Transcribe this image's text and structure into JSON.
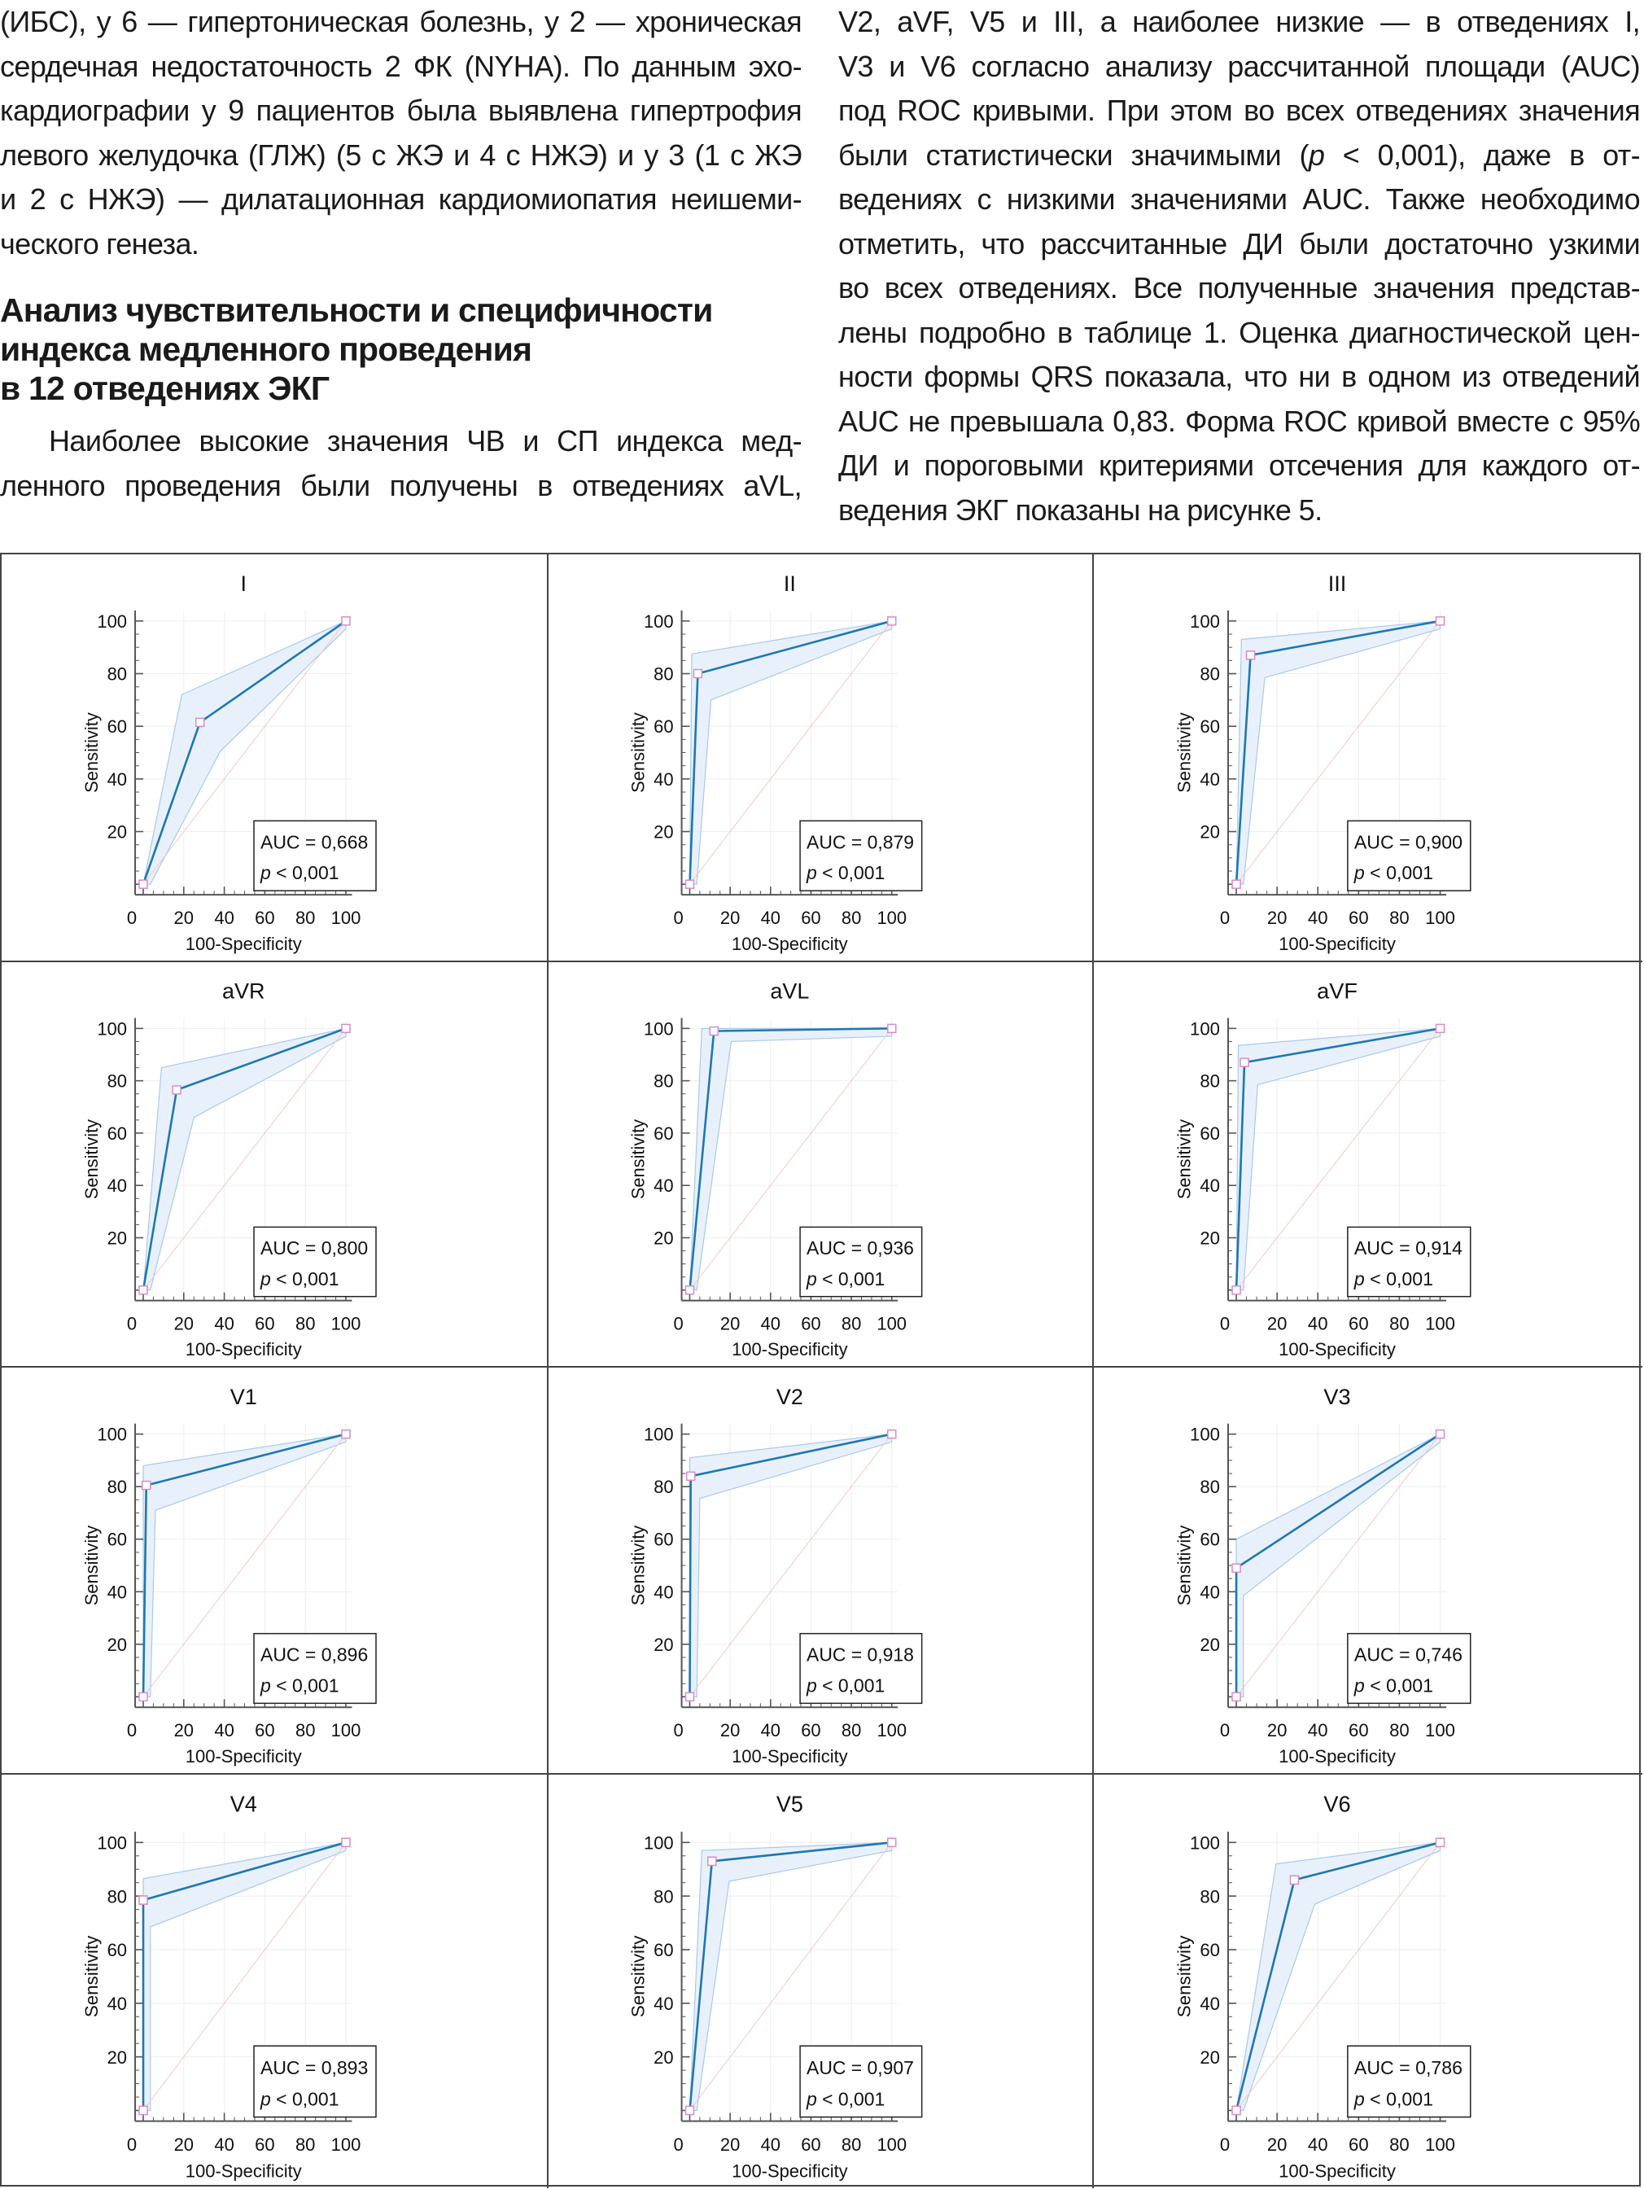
{
  "article": {
    "left_column": {
      "para1_lines": [
        "(ИБС), у 6 — гипертоническая болезнь, у 2 — хроническая",
        "сердечная недостаточность 2 ФК (NYHA). По данным эхо-",
        "кардиографии у 9 пациентов была выявлена гипертрофия",
        "левого желудочка (ГЛЖ) (5 с ЖЭ и 4 с НЖЭ) и у 3 (1 с ЖЭ",
        "и 2 с НЖЭ) — дилатационная кардиомиопатия неишеми-",
        "ческого генеза."
      ],
      "heading_lines": [
        "Анализ чувствительности и специфичности",
        "индекса медленного проведения",
        "в 12 отведениях ЭКГ"
      ],
      "para2_lines": [
        "Наиболее высокие значения ЧВ и СП индекса мед-",
        "ленного проведения были получены в отведениях aVL,"
      ]
    },
    "right_column": {
      "lines": [
        "V2, aVF, V5 и III, а наиболее низкие — в отведениях I,",
        "V3 и V6 согласно анализу рассчитанной площади (AUC)",
        "под ROC кривыми. При этом во всех отведениях значения",
        "были статистически значимыми (p < 0,001), даже в от-",
        "ведениях с низкими значениями AUC. Также необходимо",
        "отметить, что рассчитанные ДИ были достаточно узкими",
        "во всех отведениях. Все полученные значения представ-",
        "лены подробно в таблице 1. Оценка диагностической цен-",
        "ности формы QRS показала, что ни в одном из отведений",
        "AUC не превышала 0,83. Форма ROC кривой вместе с 95%",
        "ДИ и пороговыми критериями отсечения для каждого от-",
        "ведения ЭКГ показаны на рисунке 5."
      ]
    }
  },
  "colors": {
    "curve": "#1f77b4",
    "ci_fill": "#e8f1fb",
    "ci_edge": "#a9c9ea",
    "diagonal": "#f4c7c7",
    "marker": "#d98cc8",
    "grid": "#eeeeee",
    "axis": "#555555"
  },
  "chart_data": [
    {
      "type": "line",
      "title": "I",
      "xlabel": "100-Specificity",
      "ylabel": "Sensitivity",
      "xticks": [
        "0",
        "20",
        "40",
        "60",
        "80",
        "100"
      ],
      "yticks": [
        "20",
        "40",
        "60",
        "80",
        "100"
      ],
      "xlim": [
        -4,
        103
      ],
      "ylim": [
        -4,
        104
      ],
      "grid": true,
      "roc": [
        [
          0,
          0
        ],
        [
          28,
          61.5
        ],
        [
          100,
          100
        ]
      ],
      "ci_upper": [
        [
          0,
          0
        ],
        [
          19,
          72
        ],
        [
          100,
          100
        ]
      ],
      "ci_lower": [
        [
          3.5,
          0
        ],
        [
          38,
          50.5
        ],
        [
          100,
          97
        ]
      ],
      "diagonal": [
        [
          0,
          0
        ],
        [
          100,
          100
        ]
      ],
      "auc_label": "AUC = 0,668",
      "p_prefix": "p",
      "p_label": " < 0,001",
      "legend": "bottom-right"
    },
    {
      "type": "line",
      "title": "II",
      "xlabel": "100-Specificity",
      "ylabel": "Sensitivity",
      "xticks": [
        "0",
        "20",
        "40",
        "60",
        "80",
        "100"
      ],
      "yticks": [
        "20",
        "40",
        "60",
        "80",
        "100"
      ],
      "xlim": [
        -4,
        103
      ],
      "ylim": [
        -4,
        104
      ],
      "grid": true,
      "roc": [
        [
          0,
          0
        ],
        [
          4,
          80
        ],
        [
          100,
          100
        ]
      ],
      "ci_upper": [
        [
          0,
          0
        ],
        [
          1,
          87.5
        ],
        [
          100,
          100
        ]
      ],
      "ci_lower": [
        [
          3.5,
          0
        ],
        [
          10.5,
          70
        ],
        [
          100,
          97
        ]
      ],
      "diagonal": [
        [
          0,
          0
        ],
        [
          100,
          100
        ]
      ],
      "auc_label": "AUC = 0,879",
      "p_prefix": "p",
      "p_label": " < 0,001",
      "legend": "bottom-right"
    },
    {
      "type": "line",
      "title": "III",
      "xlabel": "100-Specificity",
      "ylabel": "Sensitivity",
      "xticks": [
        "0",
        "20",
        "40",
        "60",
        "80",
        "100"
      ],
      "yticks": [
        "20",
        "40",
        "60",
        "80",
        "100"
      ],
      "xlim": [
        -4,
        103
      ],
      "ylim": [
        -4,
        104
      ],
      "grid": true,
      "roc": [
        [
          0,
          0
        ],
        [
          7,
          87
        ],
        [
          100,
          100
        ]
      ],
      "ci_upper": [
        [
          0,
          0
        ],
        [
          2.5,
          93
        ],
        [
          100,
          100
        ]
      ],
      "ci_lower": [
        [
          3.5,
          0
        ],
        [
          14,
          78.5
        ],
        [
          100,
          97
        ]
      ],
      "diagonal": [
        [
          0,
          0
        ],
        [
          100,
          100
        ]
      ],
      "auc_label": "AUC = 0,900",
      "p_prefix": "p",
      "p_label": " < 0,001",
      "legend": "bottom-right"
    },
    {
      "type": "line",
      "title": "aVR",
      "xlabel": "100-Specificity",
      "ylabel": "Sensitivity",
      "xticks": [
        "0",
        "20",
        "40",
        "60",
        "80",
        "100"
      ],
      "yticks": [
        "20",
        "40",
        "60",
        "80",
        "100"
      ],
      "xlim": [
        -4,
        103
      ],
      "ylim": [
        -4,
        104
      ],
      "grid": true,
      "roc": [
        [
          0,
          0
        ],
        [
          16.5,
          76.5
        ],
        [
          100,
          100
        ]
      ],
      "ci_upper": [
        [
          0,
          0
        ],
        [
          9,
          85
        ],
        [
          100,
          100
        ]
      ],
      "ci_lower": [
        [
          3.5,
          0
        ],
        [
          25,
          66
        ],
        [
          100,
          97
        ]
      ],
      "diagonal": [
        [
          0,
          0
        ],
        [
          100,
          100
        ]
      ],
      "auc_label": "AUC = 0,800",
      "p_prefix": "p",
      "p_label": " < 0,001",
      "legend": "bottom-right"
    },
    {
      "type": "line",
      "title": "aVL",
      "xlabel": "100-Specificity",
      "ylabel": "Sensitivity",
      "xticks": [
        "0",
        "20",
        "40",
        "60",
        "80",
        "100"
      ],
      "yticks": [
        "20",
        "40",
        "60",
        "80",
        "100"
      ],
      "xlim": [
        -4,
        103
      ],
      "ylim": [
        -4,
        104
      ],
      "grid": true,
      "roc": [
        [
          0,
          0
        ],
        [
          12,
          99
        ],
        [
          100,
          100
        ]
      ],
      "ci_upper": [
        [
          0,
          0
        ],
        [
          6,
          100
        ],
        [
          100,
          100
        ]
      ],
      "ci_lower": [
        [
          3.5,
          0
        ],
        [
          20.5,
          95
        ],
        [
          100,
          97
        ]
      ],
      "diagonal": [
        [
          0,
          0
        ],
        [
          100,
          100
        ]
      ],
      "auc_label": "AUC = 0,936",
      "p_prefix": "p",
      "p_label": " < 0,001",
      "legend": "bottom-right"
    },
    {
      "type": "line",
      "title": "aVF",
      "xlabel": "100-Specificity",
      "ylabel": "Sensitivity",
      "xticks": [
        "0",
        "20",
        "40",
        "60",
        "80",
        "100"
      ],
      "yticks": [
        "20",
        "40",
        "60",
        "80",
        "100"
      ],
      "xlim": [
        -4,
        103
      ],
      "ylim": [
        -4,
        104
      ],
      "grid": true,
      "roc": [
        [
          0,
          0
        ],
        [
          4,
          87
        ],
        [
          100,
          100
        ]
      ],
      "ci_upper": [
        [
          0,
          0
        ],
        [
          1,
          93.5
        ],
        [
          100,
          100
        ]
      ],
      "ci_lower": [
        [
          3.5,
          0
        ],
        [
          10.5,
          78.5
        ],
        [
          100,
          97
        ]
      ],
      "diagonal": [
        [
          0,
          0
        ],
        [
          100,
          100
        ]
      ],
      "auc_label": "AUC = 0,914",
      "p_prefix": "p",
      "p_label": " < 0,001",
      "legend": "bottom-right"
    },
    {
      "type": "line",
      "title": "V1",
      "xlabel": "100-Specificity",
      "ylabel": "Sensitivity",
      "xticks": [
        "0",
        "20",
        "40",
        "60",
        "80",
        "100"
      ],
      "yticks": [
        "20",
        "40",
        "60",
        "80",
        "100"
      ],
      "xlim": [
        -4,
        103
      ],
      "ylim": [
        -4,
        104
      ],
      "grid": true,
      "roc": [
        [
          0,
          0
        ],
        [
          1.5,
          80.5
        ],
        [
          100,
          100
        ]
      ],
      "ci_upper": [
        [
          0,
          0
        ],
        [
          0,
          88
        ],
        [
          100,
          100
        ]
      ],
      "ci_lower": [
        [
          3.5,
          0
        ],
        [
          6,
          71
        ],
        [
          100,
          97
        ]
      ],
      "diagonal": [
        [
          0,
          0
        ],
        [
          100,
          100
        ]
      ],
      "auc_label": "AUC = 0,896",
      "p_prefix": "p",
      "p_label": " < 0,001",
      "legend": "bottom-right"
    },
    {
      "type": "line",
      "title": "V2",
      "xlabel": "100-Specificity",
      "ylabel": "Sensitivity",
      "xticks": [
        "0",
        "20",
        "40",
        "60",
        "80",
        "100"
      ],
      "yticks": [
        "20",
        "40",
        "60",
        "80",
        "100"
      ],
      "xlim": [
        -4,
        103
      ],
      "ylim": [
        -4,
        104
      ],
      "grid": true,
      "roc": [
        [
          0,
          0
        ],
        [
          0.5,
          84
        ],
        [
          100,
          100
        ]
      ],
      "ci_upper": [
        [
          0,
          0
        ],
        [
          0,
          91
        ],
        [
          100,
          100
        ]
      ],
      "ci_lower": [
        [
          3.5,
          0
        ],
        [
          5,
          75.5
        ],
        [
          100,
          97
        ]
      ],
      "diagonal": [
        [
          0,
          0
        ],
        [
          100,
          100
        ]
      ],
      "auc_label": "AUC = 0,918",
      "p_prefix": "p",
      "p_label": " < 0,001",
      "legend": "bottom-right"
    },
    {
      "type": "line",
      "title": "V3",
      "xlabel": "100-Specificity",
      "ylabel": "Sensitivity",
      "xticks": [
        "0",
        "20",
        "40",
        "60",
        "80",
        "100"
      ],
      "yticks": [
        "20",
        "40",
        "60",
        "80",
        "100"
      ],
      "xlim": [
        -4,
        103
      ],
      "ylim": [
        -4,
        104
      ],
      "grid": true,
      "roc": [
        [
          0,
          0
        ],
        [
          0,
          49
        ],
        [
          100,
          100
        ]
      ],
      "ci_upper": [
        [
          0,
          0
        ],
        [
          0,
          60
        ],
        [
          100,
          100
        ]
      ],
      "ci_lower": [
        [
          3.5,
          0
        ],
        [
          3.5,
          38.5
        ],
        [
          100,
          97
        ]
      ],
      "diagonal": [
        [
          0,
          0
        ],
        [
          100,
          100
        ]
      ],
      "auc_label": "AUC = 0,746",
      "p_prefix": "p",
      "p_label": " < 0,001",
      "legend": "bottom-right"
    },
    {
      "type": "line",
      "title": "V4",
      "xlabel": "100-Specificity",
      "ylabel": "Sensitivity",
      "xticks": [
        "0",
        "20",
        "40",
        "60",
        "80",
        "100"
      ],
      "yticks": [
        "20",
        "40",
        "60",
        "80",
        "100"
      ],
      "xlim": [
        -4,
        103
      ],
      "ylim": [
        -4,
        104
      ],
      "grid": true,
      "roc": [
        [
          0,
          0
        ],
        [
          0,
          78.5
        ],
        [
          100,
          100
        ]
      ],
      "ci_upper": [
        [
          0,
          0
        ],
        [
          0,
          86.5
        ],
        [
          100,
          100
        ]
      ],
      "ci_lower": [
        [
          3.5,
          0
        ],
        [
          3.5,
          68.5
        ],
        [
          100,
          97
        ]
      ],
      "diagonal": [
        [
          0,
          0
        ],
        [
          100,
          100
        ]
      ],
      "auc_label": "AUC = 0,893",
      "p_prefix": "p",
      "p_label": " < 0,001",
      "legend": "bottom-right"
    },
    {
      "type": "line",
      "title": "V5",
      "xlabel": "100-Specificity",
      "ylabel": "Sensitivity",
      "xticks": [
        "0",
        "20",
        "40",
        "60",
        "80",
        "100"
      ],
      "yticks": [
        "20",
        "40",
        "60",
        "80",
        "100"
      ],
      "xlim": [
        -4,
        103
      ],
      "ylim": [
        -4,
        104
      ],
      "grid": true,
      "roc": [
        [
          0,
          0
        ],
        [
          11,
          93
        ],
        [
          100,
          100
        ]
      ],
      "ci_upper": [
        [
          0,
          0
        ],
        [
          6,
          97
        ],
        [
          100,
          100
        ]
      ],
      "ci_lower": [
        [
          3.5,
          0
        ],
        [
          19.5,
          85.5
        ],
        [
          100,
          97
        ]
      ],
      "diagonal": [
        [
          0,
          0
        ],
        [
          100,
          100
        ]
      ],
      "auc_label": "AUC = 0,907",
      "p_prefix": "p",
      "p_label": " < 0,001",
      "legend": "bottom-right"
    },
    {
      "type": "line",
      "title": "V6",
      "xlabel": "100-Specificity",
      "ylabel": "Sensitivity",
      "xticks": [
        "0",
        "20",
        "40",
        "60",
        "80",
        "100"
      ],
      "yticks": [
        "20",
        "40",
        "60",
        "80",
        "100"
      ],
      "xlim": [
        -4,
        103
      ],
      "ylim": [
        -4,
        104
      ],
      "grid": true,
      "roc": [
        [
          0,
          0
        ],
        [
          28.5,
          86
        ],
        [
          100,
          100
        ]
      ],
      "ci_upper": [
        [
          0,
          0
        ],
        [
          19.5,
          92
        ],
        [
          100,
          100
        ]
      ],
      "ci_lower": [
        [
          3.5,
          0
        ],
        [
          38.5,
          77
        ],
        [
          100,
          97
        ]
      ],
      "diagonal": [
        [
          0,
          0
        ],
        [
          100,
          100
        ]
      ],
      "auc_label": "AUC = 0,786",
      "p_prefix": "p",
      "p_label": " < 0,001",
      "legend": "bottom-right"
    }
  ]
}
